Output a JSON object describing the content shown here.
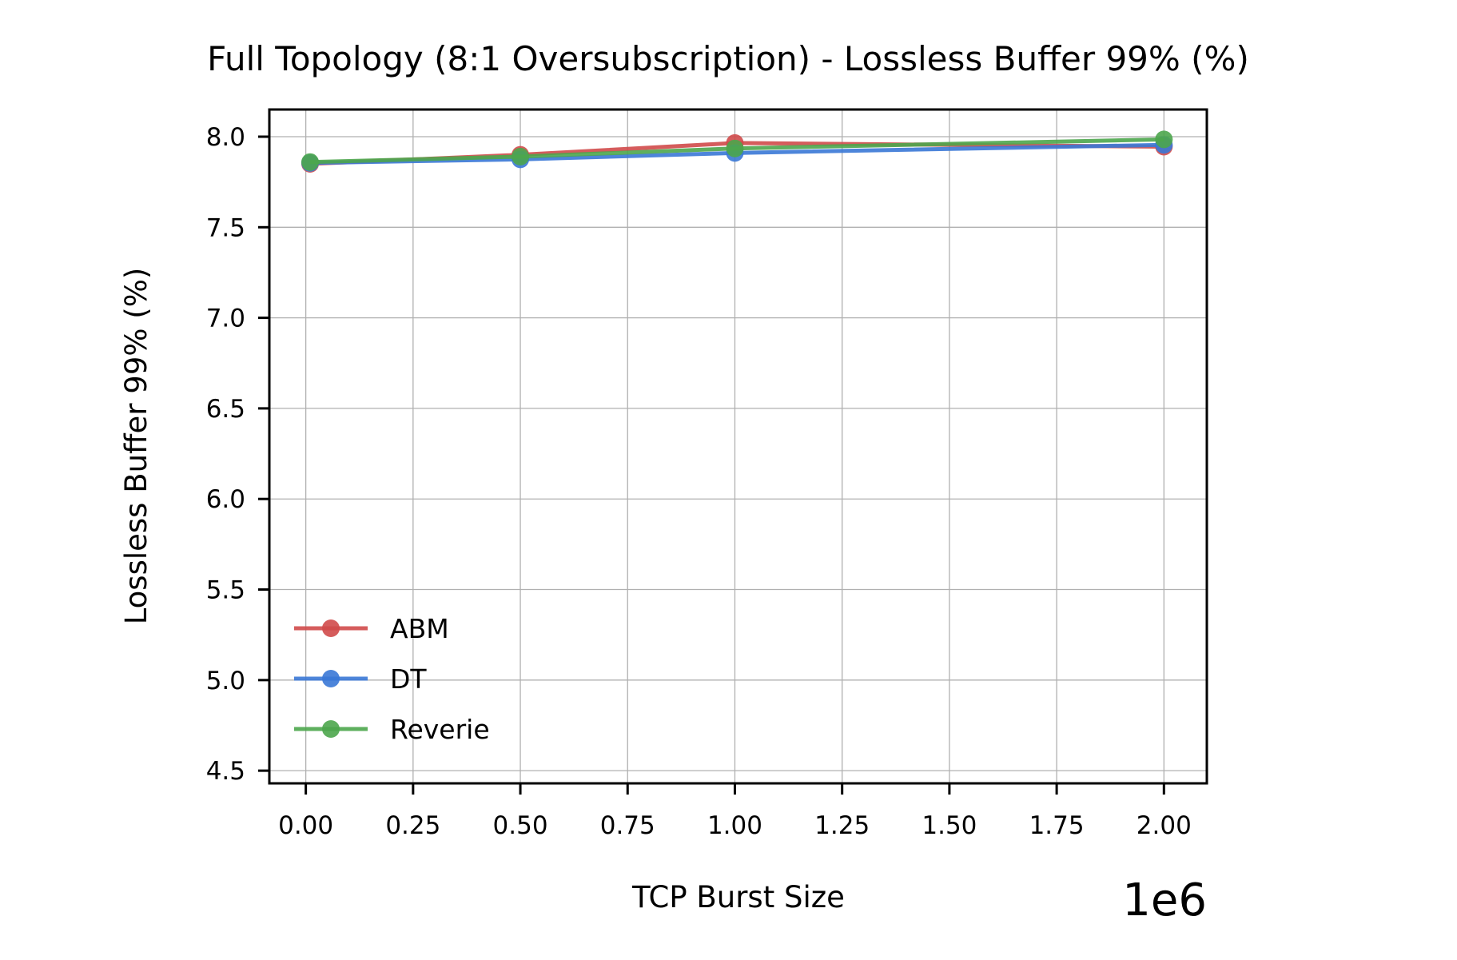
{
  "chart_data": {
    "type": "line",
    "title": "Full Topology (8:1 Oversubscription) - Lossless Buffer 99% (%)",
    "xlabel": "TCP Burst Size",
    "ylabel": "Lossless Buffer 99% (%)",
    "x_offset_label": "1e6",
    "x_scale_factor": 1000000,
    "xlim": [
      -0.085,
      2.1
    ],
    "ylim": [
      4.43,
      8.15
    ],
    "x_ticks": [
      0.0,
      0.25,
      0.5,
      0.75,
      1.0,
      1.25,
      1.5,
      1.75,
      2.0
    ],
    "x_tick_labels": [
      "0.00",
      "0.25",
      "0.50",
      "0.75",
      "1.00",
      "1.25",
      "1.50",
      "1.75",
      "2.00"
    ],
    "y_ticks": [
      4.5,
      5.0,
      5.5,
      6.0,
      6.5,
      7.0,
      7.5,
      8.0
    ],
    "y_tick_labels": [
      "4.5",
      "5.0",
      "5.5",
      "6.0",
      "6.5",
      "7.0",
      "7.5",
      "8.0"
    ],
    "grid": true,
    "legend_position": "lower-left",
    "x": [
      10000,
      500000,
      1000000,
      2000000
    ],
    "series": [
      {
        "name": "ABM",
        "color": "#d04a4a",
        "values": [
          7.85,
          7.9,
          7.965,
          7.945
        ]
      },
      {
        "name": "DT",
        "color": "#3a78d6",
        "values": [
          7.855,
          7.875,
          7.91,
          7.955
        ]
      },
      {
        "name": "Reverie",
        "color": "#4ca64c",
        "values": [
          7.86,
          7.89,
          7.935,
          7.985
        ]
      }
    ]
  }
}
